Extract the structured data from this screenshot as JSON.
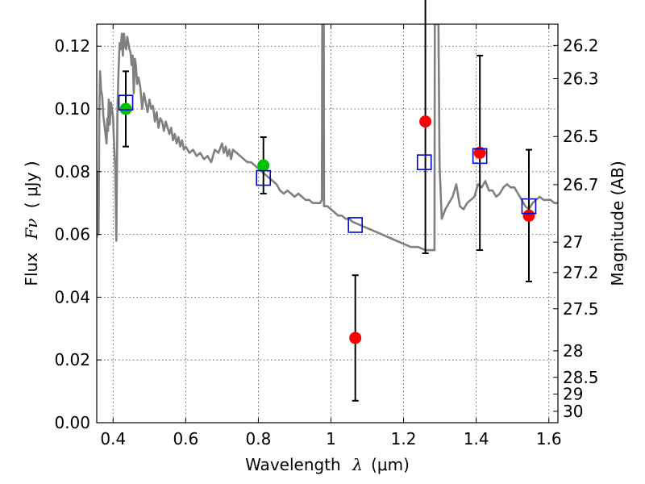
{
  "chart_data": {
    "type": "scatter",
    "xlabel": "Wavelength",
    "xlabel_symbol": "λ",
    "xlabel_unit": "(μm)",
    "ylabel": "Flux",
    "ylabel_symbol": "Fν",
    "ylabel_unit": "( μJy )",
    "y2label": "Magnitude (AB)",
    "xlim": [
      0.355,
      1.625
    ],
    "ylim": [
      0.0,
      0.127
    ],
    "grid": true,
    "x_ticks": [
      "0.4",
      "0.6",
      "0.8",
      "1",
      "1.2",
      "1.4",
      "1.6"
    ],
    "x_tick_values": [
      0.4,
      0.6,
      0.8,
      1.0,
      1.2,
      1.4,
      1.6
    ],
    "y_ticks": [
      "0.00",
      "0.02",
      "0.04",
      "0.06",
      "0.08",
      "0.10",
      "0.12"
    ],
    "y_tick_values": [
      0.0,
      0.02,
      0.04,
      0.06,
      0.08,
      0.1,
      0.12
    ],
    "y2_ticks": [
      "26.2",
      "26.3",
      "26.5",
      "26.7",
      "27",
      "27.2",
      "27.5",
      "28",
      "28.5",
      "29",
      "30"
    ],
    "y2_tick_values": [
      26.2,
      26.3,
      26.5,
      26.7,
      27.0,
      27.2,
      27.5,
      28.0,
      28.5,
      29.0,
      30.0
    ],
    "series": [
      {
        "kind": "measured-green",
        "color": "#00c000",
        "points": [
          {
            "x": 0.435,
            "y": 0.1,
            "err": 0.012
          },
          {
            "x": 0.814,
            "y": 0.082,
            "err": 0.009
          }
        ]
      },
      {
        "kind": "measured-red",
        "color": "#ff0000",
        "points": [
          {
            "x": 1.067,
            "y": 0.027,
            "err": 0.02
          },
          {
            "x": 1.26,
            "y": 0.096,
            "err": 0.042
          },
          {
            "x": 1.41,
            "y": 0.086,
            "err": 0.031
          },
          {
            "x": 1.545,
            "y": 0.066,
            "err": 0.021
          }
        ]
      },
      {
        "kind": "model-photometry",
        "color": "#0000cc",
        "points": [
          {
            "x": 0.435,
            "y": 0.102
          },
          {
            "x": 0.814,
            "y": 0.078
          },
          {
            "x": 1.067,
            "y": 0.063
          },
          {
            "x": 1.257,
            "y": 0.083
          },
          {
            "x": 1.41,
            "y": 0.085
          },
          {
            "x": 1.545,
            "y": 0.069
          }
        ]
      },
      {
        "kind": "model-spectrum",
        "color": "#808080",
        "points": [
          [
            0.355,
            0.059
          ],
          [
            0.357,
            0.08
          ],
          [
            0.36,
            0.06
          ],
          [
            0.362,
            0.098
          ],
          [
            0.364,
            0.112
          ],
          [
            0.367,
            0.106
          ],
          [
            0.37,
            0.104
          ],
          [
            0.373,
            0.098
          ],
          [
            0.376,
            0.095
          ],
          [
            0.379,
            0.092
          ],
          [
            0.382,
            0.089
          ],
          [
            0.384,
            0.097
          ],
          [
            0.386,
            0.093
          ],
          [
            0.388,
            0.103
          ],
          [
            0.391,
            0.095
          ],
          [
            0.394,
            0.102
          ],
          [
            0.397,
            0.1
          ],
          [
            0.4,
            0.097
          ],
          [
            0.403,
            0.088
          ],
          [
            0.406,
            0.081
          ],
          [
            0.409,
            0.058
          ],
          [
            0.412,
            0.1
          ],
          [
            0.415,
            0.112
          ],
          [
            0.418,
            0.121
          ],
          [
            0.421,
            0.119
          ],
          [
            0.424,
            0.124
          ],
          [
            0.427,
            0.117
          ],
          [
            0.43,
            0.124
          ],
          [
            0.433,
            0.12
          ],
          [
            0.436,
            0.119
          ],
          [
            0.439,
            0.123
          ],
          [
            0.442,
            0.121
          ],
          [
            0.445,
            0.119
          ],
          [
            0.448,
            0.118
          ],
          [
            0.451,
            0.114
          ],
          [
            0.454,
            0.117
          ],
          [
            0.457,
            0.105
          ],
          [
            0.46,
            0.116
          ],
          [
            0.463,
            0.114
          ],
          [
            0.466,
            0.108
          ],
          [
            0.47,
            0.11
          ],
          [
            0.475,
            0.107
          ],
          [
            0.48,
            0.1
          ],
          [
            0.485,
            0.105
          ],
          [
            0.49,
            0.102
          ],
          [
            0.495,
            0.099
          ],
          [
            0.5,
            0.103
          ],
          [
            0.505,
            0.1
          ],
          [
            0.51,
            0.101
          ],
          [
            0.515,
            0.096
          ],
          [
            0.52,
            0.099
          ],
          [
            0.525,
            0.094
          ],
          [
            0.53,
            0.097
          ],
          [
            0.535,
            0.096
          ],
          [
            0.54,
            0.093
          ],
          [
            0.545,
            0.096
          ],
          [
            0.55,
            0.094
          ],
          [
            0.555,
            0.092
          ],
          [
            0.56,
            0.094
          ],
          [
            0.565,
            0.09
          ],
          [
            0.57,
            0.092
          ],
          [
            0.575,
            0.089
          ],
          [
            0.58,
            0.091
          ],
          [
            0.585,
            0.088
          ],
          [
            0.59,
            0.09
          ],
          [
            0.595,
            0.087
          ],
          [
            0.6,
            0.088
          ],
          [
            0.61,
            0.086
          ],
          [
            0.62,
            0.087
          ],
          [
            0.63,
            0.085
          ],
          [
            0.64,
            0.086
          ],
          [
            0.65,
            0.084
          ],
          [
            0.66,
            0.085
          ],
          [
            0.67,
            0.083
          ],
          [
            0.68,
            0.087
          ],
          [
            0.69,
            0.086
          ],
          [
            0.7,
            0.089
          ],
          [
            0.705,
            0.086
          ],
          [
            0.71,
            0.088
          ],
          [
            0.715,
            0.085
          ],
          [
            0.72,
            0.087
          ],
          [
            0.725,
            0.084
          ],
          [
            0.73,
            0.087
          ],
          [
            0.74,
            0.086
          ],
          [
            0.75,
            0.085
          ],
          [
            0.76,
            0.084
          ],
          [
            0.77,
            0.083
          ],
          [
            0.78,
            0.083
          ],
          [
            0.79,
            0.082
          ],
          [
            0.8,
            0.081
          ],
          [
            0.81,
            0.08
          ],
          [
            0.82,
            0.079
          ],
          [
            0.83,
            0.078
          ],
          [
            0.84,
            0.077
          ],
          [
            0.85,
            0.076
          ],
          [
            0.86,
            0.074
          ],
          [
            0.87,
            0.073
          ],
          [
            0.88,
            0.074
          ],
          [
            0.89,
            0.073
          ],
          [
            0.9,
            0.072
          ],
          [
            0.91,
            0.073
          ],
          [
            0.92,
            0.072
          ],
          [
            0.93,
            0.071
          ],
          [
            0.94,
            0.071
          ],
          [
            0.95,
            0.07
          ],
          [
            0.96,
            0.07
          ],
          [
            0.97,
            0.07
          ],
          [
            0.975,
            0.071
          ],
          [
            0.976,
            0.127
          ],
          [
            0.98,
            0.127
          ],
          [
            0.981,
            0.069
          ],
          [
            0.99,
            0.069
          ],
          [
            1.0,
            0.068
          ],
          [
            1.01,
            0.067
          ],
          [
            1.02,
            0.066
          ],
          [
            1.03,
            0.066
          ],
          [
            1.04,
            0.065
          ],
          [
            1.05,
            0.065
          ],
          [
            1.06,
            0.064
          ],
          [
            1.08,
            0.063
          ],
          [
            1.1,
            0.062
          ],
          [
            1.12,
            0.061
          ],
          [
            1.14,
            0.06
          ],
          [
            1.16,
            0.059
          ],
          [
            1.18,
            0.058
          ],
          [
            1.2,
            0.057
          ],
          [
            1.22,
            0.056
          ],
          [
            1.24,
            0.056
          ],
          [
            1.26,
            0.055
          ],
          [
            1.28,
            0.055
          ],
          [
            1.285,
            0.055
          ],
          [
            1.286,
            0.127
          ],
          [
            1.296,
            0.127
          ],
          [
            1.299,
            0.082
          ],
          [
            1.305,
            0.065
          ],
          [
            1.315,
            0.068
          ],
          [
            1.325,
            0.07
          ],
          [
            1.335,
            0.072
          ],
          [
            1.345,
            0.076
          ],
          [
            1.355,
            0.069
          ],
          [
            1.365,
            0.068
          ],
          [
            1.375,
            0.07
          ],
          [
            1.385,
            0.071
          ],
          [
            1.395,
            0.072
          ],
          [
            1.405,
            0.076
          ],
          [
            1.415,
            0.075
          ],
          [
            1.425,
            0.077
          ],
          [
            1.435,
            0.074
          ],
          [
            1.445,
            0.074
          ],
          [
            1.455,
            0.072
          ],
          [
            1.465,
            0.073
          ],
          [
            1.475,
            0.075
          ],
          [
            1.485,
            0.076
          ],
          [
            1.495,
            0.075
          ],
          [
            1.505,
            0.075
          ],
          [
            1.515,
            0.073
          ],
          [
            1.525,
            0.071
          ],
          [
            1.535,
            0.069
          ],
          [
            1.545,
            0.068
          ],
          [
            1.555,
            0.07
          ],
          [
            1.565,
            0.071
          ],
          [
            1.575,
            0.072
          ],
          [
            1.585,
            0.071
          ],
          [
            1.595,
            0.071
          ],
          [
            1.605,
            0.071
          ],
          [
            1.615,
            0.07
          ],
          [
            1.625,
            0.07
          ]
        ]
      }
    ]
  }
}
